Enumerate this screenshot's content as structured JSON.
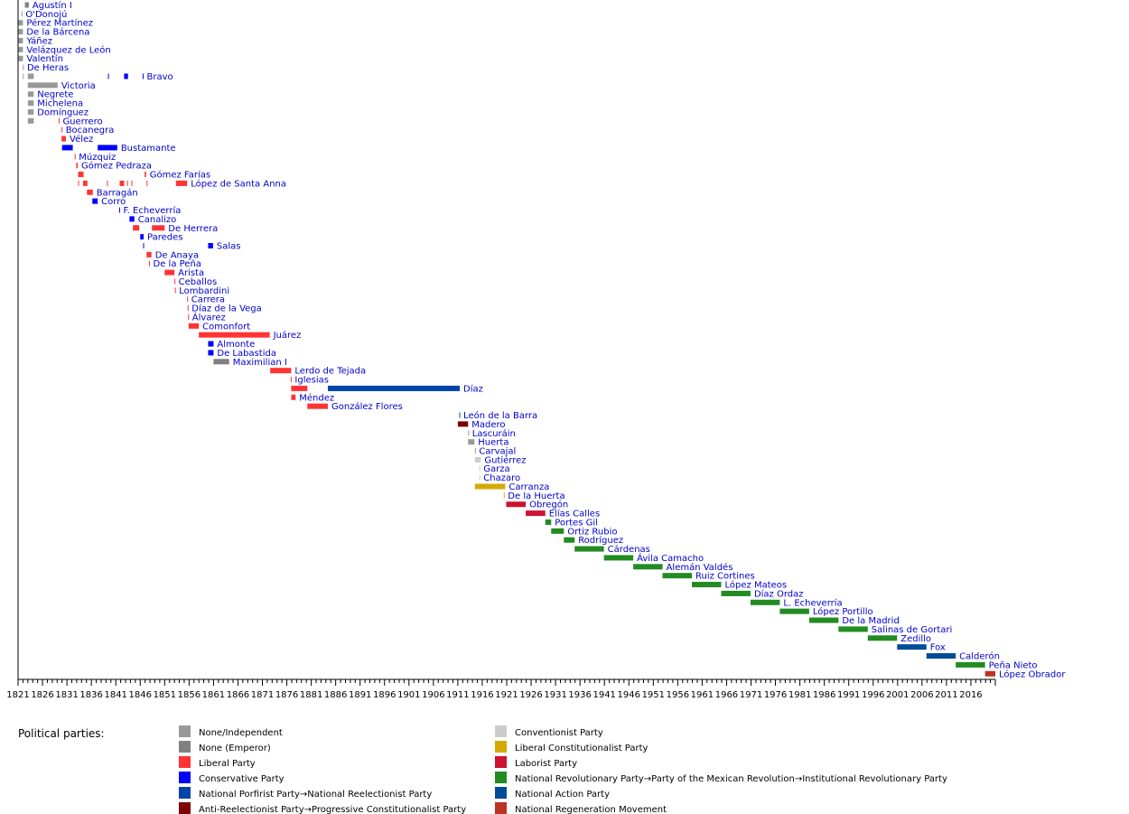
{
  "chart_data": {
    "type": "timeline",
    "x_unit": "year",
    "xlim": [
      1821,
      2021
    ],
    "x_tick_labels": [
      "1821",
      "1826",
      "1831",
      "1836",
      "1841",
      "1846",
      "1851",
      "1856",
      "1861",
      "1866",
      "1871",
      "1876",
      "1881",
      "1886",
      "1891",
      "1896",
      "1901",
      "1906",
      "1911",
      "1916",
      "1921",
      "1926",
      "1931",
      "1936",
      "1941",
      "1946",
      "1951",
      "1956",
      "1961",
      "1966",
      "1971",
      "1976",
      "1981",
      "1986",
      "1991",
      "1996",
      "2001",
      "2006",
      "2011",
      "2016"
    ],
    "legend_title": "Political parties:",
    "parties": [
      {
        "key": "ind",
        "label": "None/Independent",
        "color": "#999999"
      },
      {
        "key": "emp",
        "label": "None (Emperor)",
        "color": "#808080"
      },
      {
        "key": "lib",
        "label": "Liberal Party",
        "color": "#ff3333"
      },
      {
        "key": "con",
        "label": "Conservative Party",
        "color": "#0000ff"
      },
      {
        "key": "npp",
        "label": "National Porfirist Party→National Reelectionist Party",
        "color": "#0044aa"
      },
      {
        "key": "are",
        "label": "Anti-Reelectionist Party→Progressive Constitutionalist Party",
        "color": "#800000"
      },
      {
        "key": "cnv",
        "label": "Conventionist Party",
        "color": "#cccccc"
      },
      {
        "key": "lcp",
        "label": "Liberal Constitutionalist Party",
        "color": "#d4aa00"
      },
      {
        "key": "lab",
        "label": "Laborist Party",
        "color": "#cc1133"
      },
      {
        "key": "pri",
        "label": "National Revolutionary Party→Party of the Mexican Revolution→Institutional Revolutionary Party",
        "color": "#228b22"
      },
      {
        "key": "pan",
        "label": "National Action Party",
        "color": "#004c99"
      },
      {
        "key": "mor",
        "label": "National Regeneration Movement",
        "color": "#bb3322"
      }
    ],
    "rows": [
      {
        "label": "Agustín I",
        "segments": [
          [
            1822.4,
            1823.2,
            "emp"
          ]
        ]
      },
      {
        "label": "O'Donojú",
        "segments": [
          [
            1821.7,
            1821.8,
            "ind"
          ]
        ]
      },
      {
        "label": "Pérez Martínez",
        "segments": [
          [
            1821.0,
            1822.0,
            "ind"
          ]
        ]
      },
      {
        "label": "De la Bárcena",
        "segments": [
          [
            1821.0,
            1822.0,
            "ind"
          ]
        ]
      },
      {
        "label": "Yáñez",
        "segments": [
          [
            1821.0,
            1822.0,
            "ind"
          ]
        ]
      },
      {
        "label": "Velázquez de León",
        "segments": [
          [
            1821.0,
            1822.0,
            "ind"
          ]
        ]
      },
      {
        "label": "Valentín",
        "segments": [
          [
            1821.0,
            1822.0,
            "ind"
          ]
        ]
      },
      {
        "label": "De Heras",
        "segments": [
          [
            1822.0,
            1822.1,
            "ind"
          ]
        ]
      },
      {
        "label": "Bravo",
        "segments": [
          [
            1822.0,
            1822.1,
            "ind"
          ],
          [
            1823.0,
            1824.2,
            "ind"
          ],
          [
            1839.4,
            1839.5,
            "con"
          ],
          [
            1842.7,
            1843.5,
            "con"
          ],
          [
            1846.5,
            1846.6,
            "con"
          ]
        ]
      },
      {
        "label": "Victoria",
        "segments": [
          [
            1823.0,
            1829.1,
            "ind"
          ]
        ]
      },
      {
        "label": "Negrete",
        "segments": [
          [
            1823.0,
            1824.2,
            "ind"
          ]
        ]
      },
      {
        "label": "Michelena",
        "segments": [
          [
            1823.0,
            1824.2,
            "ind"
          ]
        ]
      },
      {
        "label": "Domínguez",
        "segments": [
          [
            1823.0,
            1824.2,
            "ind"
          ]
        ]
      },
      {
        "label": "Guerrero",
        "segments": [
          [
            1823.0,
            1824.2,
            "ind"
          ],
          [
            1829.3,
            1829.4,
            "lib"
          ]
        ]
      },
      {
        "label": "Bocanegra",
        "segments": [
          [
            1829.9,
            1830.0,
            "lib"
          ]
        ]
      },
      {
        "label": "Vélez",
        "segments": [
          [
            1829.9,
            1830.8,
            "lib"
          ]
        ]
      },
      {
        "label": "Bustamante",
        "segments": [
          [
            1830.0,
            1832.2,
            "con"
          ],
          [
            1837.3,
            1841.3,
            "con"
          ]
        ]
      },
      {
        "label": "Múzquiz",
        "segments": [
          [
            1832.6,
            1832.7,
            "lib"
          ]
        ]
      },
      {
        "label": "Gómez Pedraza",
        "segments": [
          [
            1832.9,
            1833.2,
            "lib"
          ]
        ]
      },
      {
        "label": "Gómez Farías",
        "segments": [
          [
            1833.3,
            1834.4,
            "lib"
          ],
          [
            1846.9,
            1847.2,
            "lib"
          ]
        ]
      },
      {
        "label": "López de Santa Anna",
        "segments": [
          [
            1833.3,
            1833.4,
            "lib"
          ],
          [
            1834.3,
            1835.2,
            "lib"
          ],
          [
            1839.2,
            1839.3,
            "lib"
          ],
          [
            1841.8,
            1842.7,
            "lib"
          ],
          [
            1843.3,
            1843.4,
            "lib"
          ],
          [
            1844.2,
            1844.3,
            "lib"
          ],
          [
            1847.3,
            1847.4,
            "lib"
          ],
          [
            1853.3,
            1855.6,
            "lib"
          ]
        ]
      },
      {
        "label": "Barragán",
        "segments": [
          [
            1835.1,
            1836.3,
            "lib"
          ]
        ]
      },
      {
        "label": "Corro",
        "segments": [
          [
            1836.2,
            1837.3,
            "con"
          ]
        ]
      },
      {
        "label": "F. Echeverría",
        "segments": [
          [
            1841.7,
            1841.8,
            "con"
          ]
        ]
      },
      {
        "label": "Canalizo",
        "segments": [
          [
            1843.8,
            1844.8,
            "con"
          ]
        ]
      },
      {
        "label": "De Herrera",
        "segments": [
          [
            1844.5,
            1845.8,
            "lib"
          ],
          [
            1848.4,
            1851.0,
            "lib"
          ]
        ]
      },
      {
        "label": "Paredes",
        "segments": [
          [
            1846.0,
            1846.7,
            "con"
          ]
        ]
      },
      {
        "label": "Salas",
        "segments": [
          [
            1846.6,
            1846.7,
            "con"
          ],
          [
            1859.9,
            1860.9,
            "con"
          ]
        ]
      },
      {
        "label": "De Anaya",
        "segments": [
          [
            1847.3,
            1848.3,
            "lib"
          ]
        ]
      },
      {
        "label": "De la Peña",
        "segments": [
          [
            1847.8,
            1847.9,
            "lib"
          ]
        ]
      },
      {
        "label": "Arista",
        "segments": [
          [
            1851.0,
            1853.0,
            "lib"
          ]
        ]
      },
      {
        "label": "Ceballos",
        "segments": [
          [
            1853.0,
            1853.1,
            "lib"
          ]
        ]
      },
      {
        "label": "Lombardini",
        "segments": [
          [
            1853.1,
            1853.2,
            "lib"
          ]
        ]
      },
      {
        "label": "Carrera",
        "segments": [
          [
            1855.6,
            1855.7,
            "lib"
          ]
        ]
      },
      {
        "label": "Díaz de la Vega",
        "segments": [
          [
            1855.7,
            1855.8,
            "lib"
          ]
        ]
      },
      {
        "label": "Álvarez",
        "segments": [
          [
            1855.8,
            1855.9,
            "lib"
          ]
        ]
      },
      {
        "label": "Comonfort",
        "segments": [
          [
            1855.9,
            1858.0,
            "lib"
          ]
        ]
      },
      {
        "label": "Juárez",
        "segments": [
          [
            1858.0,
            1872.5,
            "lib"
          ]
        ]
      },
      {
        "label": "Almonte",
        "segments": [
          [
            1859.9,
            1861.0,
            "con"
          ]
        ]
      },
      {
        "label": "De Labastida",
        "segments": [
          [
            1859.9,
            1861.0,
            "con"
          ]
        ]
      },
      {
        "label": "Maximilian I",
        "segments": [
          [
            1861.0,
            1864.2,
            "emp"
          ]
        ]
      },
      {
        "label": "Lerdo de Tejada",
        "segments": [
          [
            1872.6,
            1876.9,
            "lib"
          ]
        ]
      },
      {
        "label": "Iglesias",
        "segments": [
          [
            1876.8,
            1876.9,
            "lib"
          ]
        ]
      },
      {
        "label": "Díaz",
        "segments": [
          [
            1876.9,
            1880.2,
            "lib"
          ],
          [
            1884.4,
            1911.4,
            "npp"
          ]
        ]
      },
      {
        "label": "Méndez",
        "segments": [
          [
            1876.9,
            1877.8,
            "lib"
          ]
        ]
      },
      {
        "label": "González Flores",
        "segments": [
          [
            1880.2,
            1884.4,
            "lib"
          ]
        ]
      },
      {
        "label": "León de la Barra",
        "segments": [
          [
            1911.3,
            1911.4,
            "npp"
          ]
        ]
      },
      {
        "label": "Madero",
        "segments": [
          [
            1911.0,
            1913.1,
            "are"
          ]
        ]
      },
      {
        "label": "Lascuráin",
        "segments": [
          [
            1913.1,
            1913.2,
            "ind"
          ]
        ]
      },
      {
        "label": "Huerta",
        "segments": [
          [
            1913.1,
            1914.4,
            "ind"
          ]
        ]
      },
      {
        "label": "Carvajal",
        "segments": [
          [
            1914.5,
            1914.6,
            "ind"
          ]
        ]
      },
      {
        "label": "Gutiérrez",
        "segments": [
          [
            1914.5,
            1915.7,
            "cnv"
          ]
        ]
      },
      {
        "label": "Garza",
        "segments": [
          [
            1915.4,
            1915.5,
            "cnv"
          ]
        ]
      },
      {
        "label": "Chazaro",
        "segments": [
          [
            1915.4,
            1915.5,
            "cnv"
          ]
        ]
      },
      {
        "label": "Carranza",
        "segments": [
          [
            1914.5,
            1920.7,
            "lcp"
          ]
        ]
      },
      {
        "label": "De la Huerta",
        "segments": [
          [
            1920.4,
            1920.5,
            "lcp"
          ]
        ]
      },
      {
        "label": "Obregón",
        "segments": [
          [
            1920.9,
            1924.9,
            "lab"
          ]
        ]
      },
      {
        "label": "Elías Calles",
        "segments": [
          [
            1924.9,
            1928.9,
            "lab"
          ]
        ]
      },
      {
        "label": "Portes Gil",
        "segments": [
          [
            1928.9,
            1930.1,
            "pri"
          ]
        ]
      },
      {
        "label": "Ortiz Rubio",
        "segments": [
          [
            1930.1,
            1932.7,
            "pri"
          ]
        ]
      },
      {
        "label": "Rodríguez",
        "segments": [
          [
            1932.7,
            1934.9,
            "pri"
          ]
        ]
      },
      {
        "label": "Cárdenas",
        "segments": [
          [
            1934.9,
            1940.9,
            "pri"
          ]
        ]
      },
      {
        "label": "Ávila Camacho",
        "segments": [
          [
            1940.9,
            1946.9,
            "pri"
          ]
        ]
      },
      {
        "label": "Alemán Valdés",
        "segments": [
          [
            1946.9,
            1952.9,
            "pri"
          ]
        ]
      },
      {
        "label": "Ruiz Cortines",
        "segments": [
          [
            1952.9,
            1958.9,
            "pri"
          ]
        ]
      },
      {
        "label": "López Mateos",
        "segments": [
          [
            1958.9,
            1964.9,
            "pri"
          ]
        ]
      },
      {
        "label": "Díaz Ordaz",
        "segments": [
          [
            1964.9,
            1970.9,
            "pri"
          ]
        ]
      },
      {
        "label": "L. Echeverría",
        "segments": [
          [
            1970.9,
            1976.9,
            "pri"
          ]
        ]
      },
      {
        "label": "López Portillo",
        "segments": [
          [
            1976.9,
            1982.9,
            "pri"
          ]
        ]
      },
      {
        "label": "De la Madrid",
        "segments": [
          [
            1982.9,
            1988.9,
            "pri"
          ]
        ]
      },
      {
        "label": "Salinas de Gortari",
        "segments": [
          [
            1988.9,
            1994.9,
            "pri"
          ]
        ]
      },
      {
        "label": "Zedillo",
        "segments": [
          [
            1994.9,
            2000.9,
            "pri"
          ]
        ]
      },
      {
        "label": "Fox",
        "segments": [
          [
            2000.9,
            2006.9,
            "pan"
          ]
        ]
      },
      {
        "label": "Calderón",
        "segments": [
          [
            2006.9,
            2012.9,
            "pan"
          ]
        ]
      },
      {
        "label": "Peña Nieto",
        "segments": [
          [
            2012.9,
            2018.9,
            "pri"
          ]
        ]
      },
      {
        "label": "López Obrador",
        "segments": [
          [
            2018.9,
            2021.0,
            "mor"
          ]
        ]
      }
    ]
  }
}
